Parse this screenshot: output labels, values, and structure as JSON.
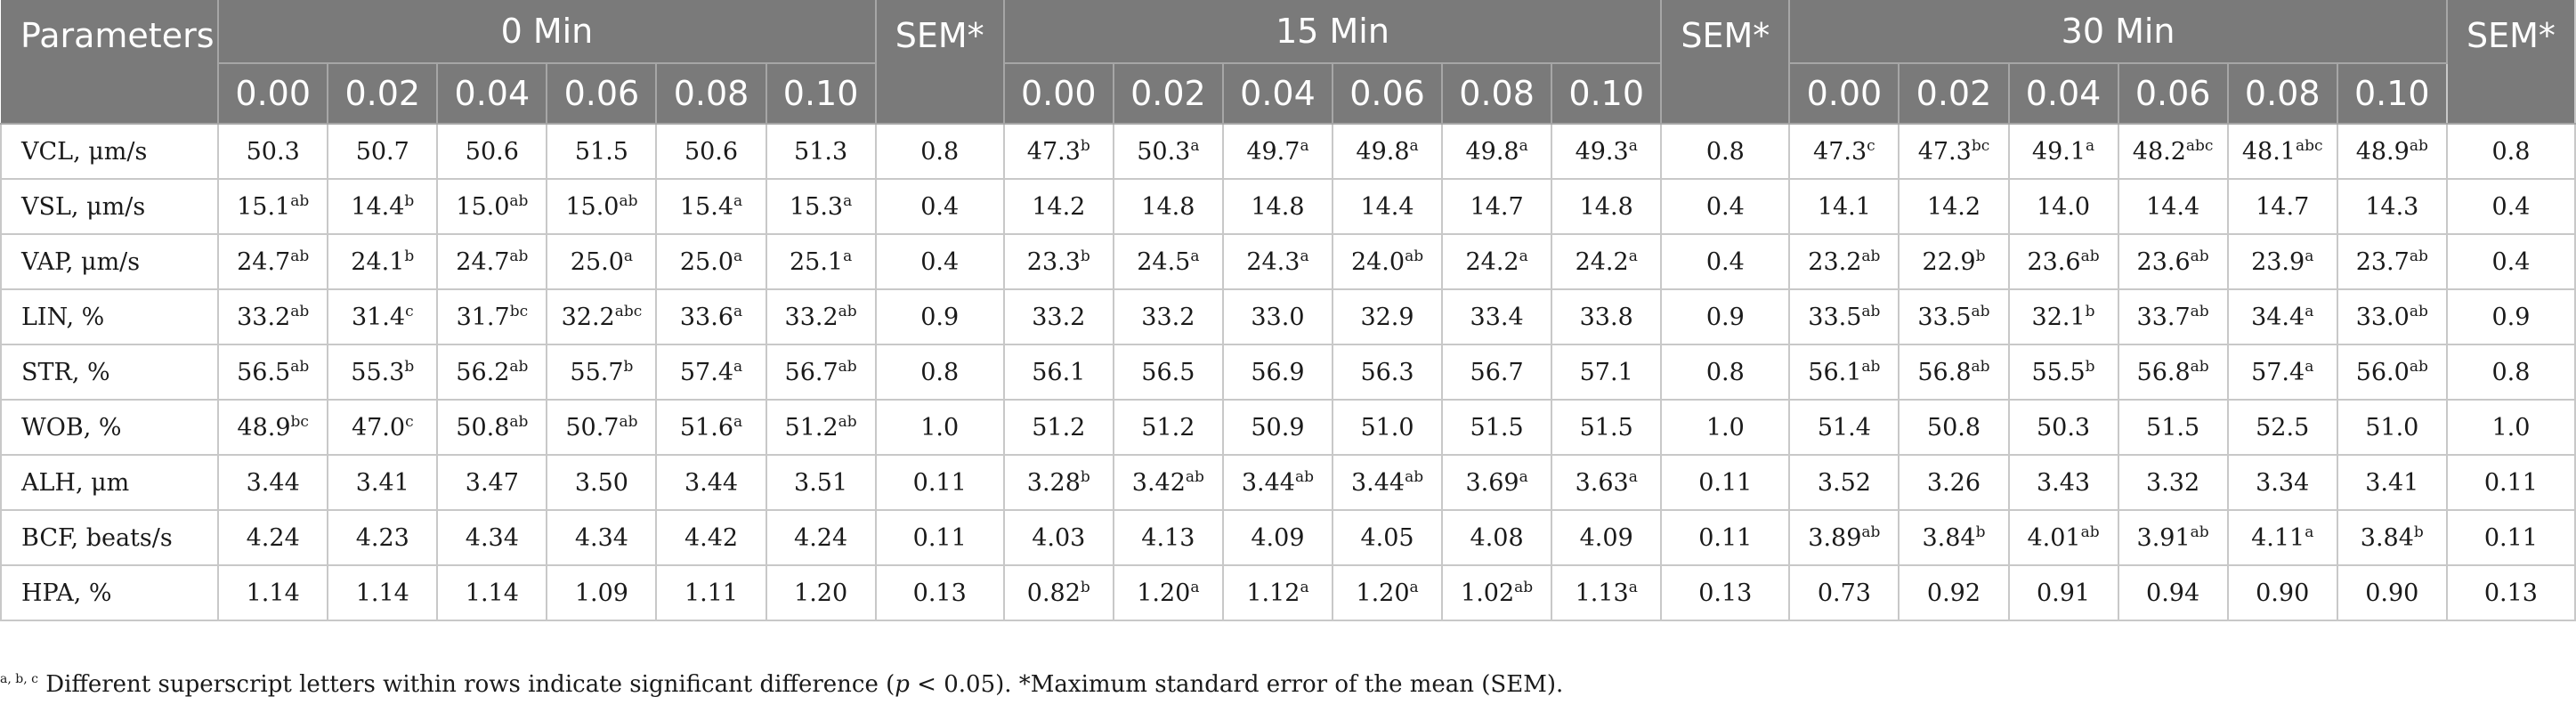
{
  "header": {
    "parameters_label": "Parameters",
    "groups": [
      "0 Min",
      "15 Min",
      "30 Min"
    ],
    "sem_label": "SEM*",
    "concentrations": [
      "0.00",
      "0.02",
      "0.04",
      "0.06",
      "0.08",
      "0.10"
    ]
  },
  "rows": [
    {
      "label": "VCL, μm/s",
      "cells": [
        [
          "50.3",
          ""
        ],
        [
          "50.7",
          ""
        ],
        [
          "50.6",
          ""
        ],
        [
          "51.5",
          ""
        ],
        [
          "50.6",
          ""
        ],
        [
          "51.3",
          ""
        ],
        [
          "0.8",
          ""
        ],
        [
          "47.3",
          "b"
        ],
        [
          "50.3",
          "a"
        ],
        [
          "49.7",
          "a"
        ],
        [
          "49.8",
          "a"
        ],
        [
          "49.8",
          "a"
        ],
        [
          "49.3",
          "a"
        ],
        [
          "0.8",
          ""
        ],
        [
          "47.3",
          "c"
        ],
        [
          "47.3",
          "bc"
        ],
        [
          "49.1",
          "a"
        ],
        [
          "48.2",
          "abc"
        ],
        [
          "48.1",
          "abc"
        ],
        [
          "48.9",
          "ab"
        ],
        [
          "0.8",
          ""
        ]
      ]
    },
    {
      "label": "VSL, μm/s",
      "cells": [
        [
          "15.1",
          "ab"
        ],
        [
          "14.4",
          "b"
        ],
        [
          "15.0",
          "ab"
        ],
        [
          "15.0",
          "ab"
        ],
        [
          "15.4",
          "a"
        ],
        [
          "15.3",
          "a"
        ],
        [
          "0.4",
          ""
        ],
        [
          "14.2",
          ""
        ],
        [
          "14.8",
          ""
        ],
        [
          "14.8",
          ""
        ],
        [
          "14.4",
          ""
        ],
        [
          "14.7",
          ""
        ],
        [
          "14.8",
          ""
        ],
        [
          "0.4",
          ""
        ],
        [
          "14.1",
          ""
        ],
        [
          "14.2",
          ""
        ],
        [
          "14.0",
          ""
        ],
        [
          "14.4",
          ""
        ],
        [
          "14.7",
          ""
        ],
        [
          "14.3",
          ""
        ],
        [
          "0.4",
          ""
        ]
      ]
    },
    {
      "label": "VAP, μm/s",
      "cells": [
        [
          "24.7",
          "ab"
        ],
        [
          "24.1",
          "b"
        ],
        [
          "24.7",
          "ab"
        ],
        [
          "25.0",
          "a"
        ],
        [
          "25.0",
          "a"
        ],
        [
          "25.1",
          "a"
        ],
        [
          "0.4",
          ""
        ],
        [
          "23.3",
          "b"
        ],
        [
          "24.5",
          "a"
        ],
        [
          "24.3",
          "a"
        ],
        [
          "24.0",
          "ab"
        ],
        [
          "24.2",
          "a"
        ],
        [
          "24.2",
          "a"
        ],
        [
          "0.4",
          ""
        ],
        [
          "23.2",
          "ab"
        ],
        [
          "22.9",
          "b"
        ],
        [
          "23.6",
          "ab"
        ],
        [
          "23.6",
          "ab"
        ],
        [
          "23.9",
          "a"
        ],
        [
          "23.7",
          "ab"
        ],
        [
          "0.4",
          ""
        ]
      ]
    },
    {
      "label": "LIN, %",
      "cells": [
        [
          "33.2",
          "ab"
        ],
        [
          "31.4",
          "c"
        ],
        [
          "31.7",
          "bc"
        ],
        [
          "32.2",
          "abc"
        ],
        [
          "33.6",
          "a"
        ],
        [
          "33.2",
          "ab"
        ],
        [
          "0.9",
          ""
        ],
        [
          "33.2",
          ""
        ],
        [
          "33.2",
          ""
        ],
        [
          "33.0",
          ""
        ],
        [
          "32.9",
          ""
        ],
        [
          "33.4",
          ""
        ],
        [
          "33.8",
          ""
        ],
        [
          "0.9",
          ""
        ],
        [
          "33.5",
          "ab"
        ],
        [
          "33.5",
          "ab"
        ],
        [
          "32.1",
          "b"
        ],
        [
          "33.7",
          "ab"
        ],
        [
          "34.4",
          "a"
        ],
        [
          "33.0",
          "ab"
        ],
        [
          "0.9",
          ""
        ]
      ]
    },
    {
      "label": "STR, %",
      "cells": [
        [
          "56.5",
          "ab"
        ],
        [
          "55.3",
          "b"
        ],
        [
          "56.2",
          "ab"
        ],
        [
          "55.7",
          "b"
        ],
        [
          "57.4",
          "a"
        ],
        [
          "56.7",
          "ab"
        ],
        [
          "0.8",
          ""
        ],
        [
          "56.1",
          ""
        ],
        [
          "56.5",
          ""
        ],
        [
          "56.9",
          ""
        ],
        [
          "56.3",
          ""
        ],
        [
          "56.7",
          ""
        ],
        [
          "57.1",
          ""
        ],
        [
          "0.8",
          ""
        ],
        [
          "56.1",
          "ab"
        ],
        [
          "56.8",
          "ab"
        ],
        [
          "55.5",
          "b"
        ],
        [
          "56.8",
          "ab"
        ],
        [
          "57.4",
          "a"
        ],
        [
          "56.0",
          "ab"
        ],
        [
          "0.8",
          ""
        ]
      ]
    },
    {
      "label": "WOB, %",
      "cells": [
        [
          "48.9",
          "bc"
        ],
        [
          "47.0",
          "c"
        ],
        [
          "50.8",
          "ab"
        ],
        [
          "50.7",
          "ab"
        ],
        [
          "51.6",
          "a"
        ],
        [
          "51.2",
          "ab"
        ],
        [
          "1.0",
          ""
        ],
        [
          "51.2",
          ""
        ],
        [
          "51.2",
          ""
        ],
        [
          "50.9",
          ""
        ],
        [
          "51.0",
          ""
        ],
        [
          "51.5",
          ""
        ],
        [
          "51.5",
          ""
        ],
        [
          "1.0",
          ""
        ],
        [
          "51.4",
          ""
        ],
        [
          "50.8",
          ""
        ],
        [
          "50.3",
          ""
        ],
        [
          "51.5",
          ""
        ],
        [
          "52.5",
          ""
        ],
        [
          "51.0",
          ""
        ],
        [
          "1.0",
          ""
        ]
      ]
    },
    {
      "label": "ALH, μm",
      "cells": [
        [
          "3.44",
          ""
        ],
        [
          "3.41",
          ""
        ],
        [
          "3.47",
          ""
        ],
        [
          "3.50",
          ""
        ],
        [
          "3.44",
          ""
        ],
        [
          "3.51",
          ""
        ],
        [
          "0.11",
          ""
        ],
        [
          "3.28",
          "b"
        ],
        [
          "3.42",
          "ab"
        ],
        [
          "3.44",
          "ab"
        ],
        [
          "3.44",
          "ab"
        ],
        [
          "3.69",
          "a"
        ],
        [
          "3.63",
          "a"
        ],
        [
          "0.11",
          ""
        ],
        [
          "3.52",
          ""
        ],
        [
          "3.26",
          ""
        ],
        [
          "3.43",
          ""
        ],
        [
          "3.32",
          ""
        ],
        [
          "3.34",
          ""
        ],
        [
          "3.41",
          ""
        ],
        [
          "0.11",
          ""
        ]
      ]
    },
    {
      "label": "BCF, beats/s",
      "cells": [
        [
          "4.24",
          ""
        ],
        [
          "4.23",
          ""
        ],
        [
          "4.34",
          ""
        ],
        [
          "4.34",
          ""
        ],
        [
          "4.42",
          ""
        ],
        [
          "4.24",
          ""
        ],
        [
          "0.11",
          ""
        ],
        [
          "4.03",
          ""
        ],
        [
          "4.13",
          ""
        ],
        [
          "4.09",
          ""
        ],
        [
          "4.05",
          ""
        ],
        [
          "4.08",
          ""
        ],
        [
          "4.09",
          ""
        ],
        [
          "0.11",
          ""
        ],
        [
          "3.89",
          "ab"
        ],
        [
          "3.84",
          "b"
        ],
        [
          "4.01",
          "ab"
        ],
        [
          "3.91",
          "ab"
        ],
        [
          "4.11",
          "a"
        ],
        [
          "3.84",
          "b"
        ],
        [
          "0.11",
          ""
        ]
      ]
    },
    {
      "label": "HPA, %",
      "cells": [
        [
          "1.14",
          ""
        ],
        [
          "1.14",
          ""
        ],
        [
          "1.14",
          ""
        ],
        [
          "1.09",
          ""
        ],
        [
          "1.11",
          ""
        ],
        [
          "1.20",
          ""
        ],
        [
          "0.13",
          ""
        ],
        [
          "0.82",
          "b"
        ],
        [
          "1.20",
          "a"
        ],
        [
          "1.12",
          "a"
        ],
        [
          "1.20",
          "a"
        ],
        [
          "1.02",
          "ab"
        ],
        [
          "1.13",
          "a"
        ],
        [
          "0.13",
          ""
        ],
        [
          "0.73",
          ""
        ],
        [
          "0.92",
          ""
        ],
        [
          "0.91",
          ""
        ],
        [
          "0.94",
          ""
        ],
        [
          "0.90",
          ""
        ],
        [
          "0.90",
          ""
        ],
        [
          "0.13",
          ""
        ]
      ]
    }
  ],
  "footnote": {
    "sup": "a, b, c",
    "text_before": " Different superscript letters within rows indicate significant difference (",
    "italic": "p",
    "text_after": " < 0.05). *Maximum standard error of the mean (SEM)."
  }
}
